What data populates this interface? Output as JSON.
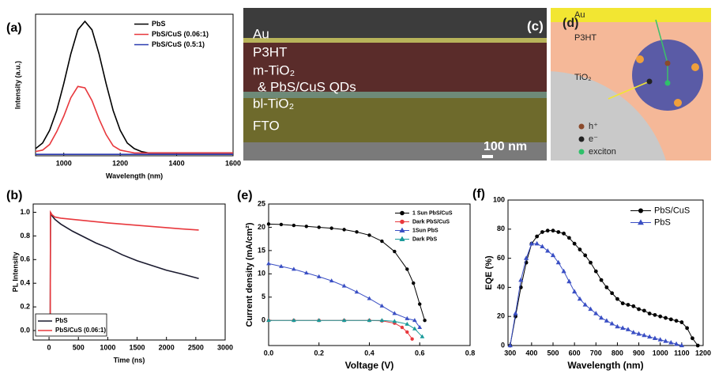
{
  "chart_data": [
    {
      "type": "line",
      "panel_label": "(a)",
      "xlabel": "Wavelength (nm)",
      "ylabel": "Intensity (a.u.)",
      "x": [
        900,
        925,
        950,
        975,
        1000,
        1025,
        1050,
        1075,
        1100,
        1125,
        1150,
        1175,
        1200,
        1225,
        1250,
        1275,
        1300,
        1325,
        1350,
        1375,
        1400,
        1425,
        1450,
        1475,
        1500,
        1525,
        1550,
        1575,
        1600
      ],
      "xlim": [
        900,
        1600
      ],
      "xticks": [
        1000,
        1200,
        1400,
        1600
      ],
      "ylim": [
        0,
        1
      ],
      "legend": "upper right",
      "series": [
        {
          "name": "PbS",
          "color": "#000000",
          "values": [
            0.05,
            0.09,
            0.18,
            0.32,
            0.51,
            0.72,
            0.89,
            0.95,
            0.89,
            0.72,
            0.51,
            0.32,
            0.18,
            0.09,
            0.05,
            0.03,
            0.02,
            0.02,
            0.02,
            0.02,
            0.02,
            0.02,
            0.02,
            0.02,
            0.02,
            0.02,
            0.02,
            0.02,
            0.02
          ]
        },
        {
          "name": "PbS/CuS (0.06:1)",
          "color": "#e8383d",
          "values": [
            0.03,
            0.04,
            0.08,
            0.17,
            0.28,
            0.41,
            0.49,
            0.48,
            0.39,
            0.26,
            0.15,
            0.07,
            0.04,
            0.03,
            0.02,
            0.02,
            0.02,
            0.02,
            0.02,
            0.02,
            0.02,
            0.02,
            0.02,
            0.02,
            0.02,
            0.02,
            0.02,
            0.02,
            0.02
          ]
        },
        {
          "name": "PbS/CuS (0.5:1)",
          "color": "#2b3bb0",
          "values": [
            0.01,
            0.01,
            0.01,
            0.01,
            0.01,
            0.01,
            0.01,
            0.01,
            0.01,
            0.01,
            0.01,
            0.01,
            0.01,
            0.01,
            0.01,
            0.01,
            0.01,
            0.01,
            0.01,
            0.01,
            0.01,
            0.01,
            0.01,
            0.01,
            0.01,
            0.01,
            0.01,
            0.01,
            0.01
          ]
        }
      ]
    },
    {
      "type": "line",
      "panel_label": "(b)",
      "xlabel": "Time (ns)",
      "ylabel": "PL Intensity",
      "x": [
        20,
        25,
        50,
        100,
        200,
        400,
        600,
        800,
        1000,
        1250,
        1500,
        1750,
        2000,
        2250,
        2550
      ],
      "xlim": [
        -270,
        3000
      ],
      "xticks": [
        0,
        500,
        1000,
        1500,
        2000,
        2500,
        3000
      ],
      "ylim": [
        -0.08,
        1.07
      ],
      "yticks": [
        {
          "value": 0,
          "label": "0.0"
        },
        0.2,
        0.4,
        0.6,
        0.8,
        {
          "value": 1,
          "label": "1.0"
        }
      ],
      "legend": "lower left",
      "legend_frame": true,
      "series": [
        {
          "name": "PbS",
          "color": "#1a1a2e",
          "values": [
            0,
            1.0,
            0.97,
            0.94,
            0.9,
            0.84,
            0.79,
            0.74,
            0.7,
            0.64,
            0.59,
            0.55,
            0.51,
            0.48,
            0.44
          ]
        },
        {
          "name": "PbS/CuS (0.06:1)",
          "color": "#e8383d",
          "values": [
            0,
            1.0,
            0.98,
            0.96,
            0.95,
            0.94,
            0.93,
            0.92,
            0.91,
            0.9,
            0.89,
            0.88,
            0.87,
            0.86,
            0.85
          ]
        }
      ]
    },
    {
      "type": "line",
      "panel_label": "(e)",
      "xlabel": "Voltage (V)",
      "ylabel": "Current density (mA/cm²)",
      "xlim": [
        0,
        0.8
      ],
      "xticks": [
        {
          "value": 0,
          "label": "0.0"
        },
        0.2,
        0.4,
        0.6,
        0.8
      ],
      "ylim": [
        -5.4,
        25
      ],
      "yticks": [
        0,
        5,
        10,
        15,
        20,
        25
      ],
      "legend": "upper right",
      "series": [
        {
          "name": "1 Sun PbS/CuS",
          "color": "#000000",
          "marker": "circle",
          "x": [
            0,
            0.05,
            0.1,
            0.15,
            0.2,
            0.25,
            0.3,
            0.35,
            0.4,
            0.45,
            0.5,
            0.55,
            0.575,
            0.6,
            0.62
          ],
          "values": [
            20.7,
            20.6,
            20.4,
            20.2,
            20.0,
            19.8,
            19.5,
            19.0,
            18.3,
            17.0,
            14.8,
            11.0,
            8.0,
            3.5,
            0
          ]
        },
        {
          "name": "Dark PbS/CuS",
          "color": "#e8383d",
          "marker": "circle",
          "x": [
            0,
            0.1,
            0.2,
            0.3,
            0.4,
            0.45,
            0.5,
            0.53,
            0.55,
            0.57
          ],
          "values": [
            0,
            0,
            0,
            0,
            0,
            -0.1,
            -0.6,
            -1.5,
            -2.5,
            -4.0
          ]
        },
        {
          "name": "1Sun PbS",
          "color": "#3a4fc4",
          "marker": "triangle",
          "x": [
            0,
            0.05,
            0.1,
            0.15,
            0.2,
            0.25,
            0.3,
            0.35,
            0.4,
            0.45,
            0.5,
            0.55,
            0.58,
            0.6
          ],
          "values": [
            12.2,
            11.6,
            11.0,
            10.2,
            9.4,
            8.5,
            7.4,
            6.1,
            4.7,
            3.1,
            1.5,
            0.4,
            0,
            -1.5
          ]
        },
        {
          "name": "Dark PbS",
          "color": "#1a9a9a",
          "marker": "triangle",
          "x": [
            0,
            0.1,
            0.2,
            0.3,
            0.4,
            0.45,
            0.5,
            0.55,
            0.58,
            0.61
          ],
          "values": [
            0,
            0,
            0,
            0,
            0,
            0,
            -0.2,
            -0.8,
            -1.8,
            -3.5
          ]
        }
      ]
    },
    {
      "type": "line",
      "panel_label": "(f)",
      "xlabel": "Wavelength (nm)",
      "ylabel": "EQE (%)",
      "xlim": [
        290,
        1200
      ],
      "xticks": [
        300,
        400,
        500,
        600,
        700,
        800,
        900,
        1000,
        1100,
        1200
      ],
      "ylim": [
        0,
        100
      ],
      "yticks": [
        0,
        20,
        40,
        60,
        80,
        100
      ],
      "legend": "upper right",
      "series": [
        {
          "name": "PbS/CuS",
          "color": "#000000",
          "marker": "circle",
          "x": [
            300,
            325,
            350,
            375,
            400,
            425,
            450,
            475,
            500,
            525,
            550,
            575,
            600,
            625,
            650,
            675,
            700,
            725,
            750,
            775,
            800,
            825,
            850,
            875,
            900,
            925,
            950,
            975,
            1000,
            1025,
            1050,
            1075,
            1100,
            1125,
            1150,
            1175
          ],
          "values": [
            0,
            20,
            40,
            57,
            70,
            75,
            78,
            79,
            79,
            78,
            77,
            74,
            70,
            66,
            62,
            57,
            51,
            45,
            40,
            36,
            32,
            29,
            28,
            27,
            25,
            24,
            22,
            21,
            20,
            19,
            18,
            17,
            16,
            12,
            5,
            0
          ]
        },
        {
          "name": "PbS",
          "color": "#3a4fc4",
          "marker": "triangle",
          "x": [
            300,
            325,
            350,
            375,
            400,
            425,
            450,
            475,
            500,
            525,
            550,
            575,
            600,
            625,
            650,
            675,
            700,
            725,
            750,
            775,
            800,
            825,
            850,
            875,
            900,
            925,
            950,
            975,
            1000,
            1025,
            1050,
            1075,
            1100
          ],
          "values": [
            0,
            22,
            45,
            60,
            70,
            70,
            68,
            65,
            62,
            57,
            51,
            44,
            37,
            32,
            28,
            25,
            22,
            19,
            17,
            15,
            13,
            12,
            11,
            9,
            8,
            7,
            6,
            5,
            4,
            3,
            2,
            1,
            0
          ]
        }
      ]
    }
  ],
  "sem_image": {
    "panel_label": "(c)",
    "layers": [
      "Au",
      "P3HT",
      "m-TiO₂",
      "& PbS/CuS QDs",
      "bl-TiO₂",
      "FTO"
    ],
    "scale_bar": "100 nm"
  },
  "diagram": {
    "panel_label": "(d)",
    "labels": [
      "Au",
      "P3HT",
      "TiO₂"
    ],
    "legend": [
      "h⁺",
      "e⁻",
      "exciton"
    ]
  }
}
